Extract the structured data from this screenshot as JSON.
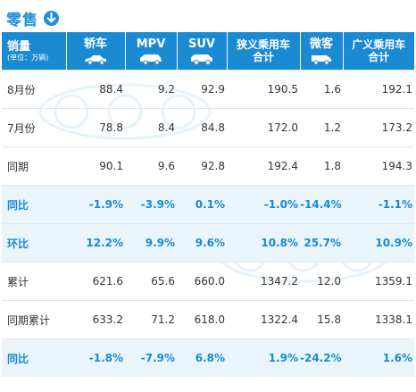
{
  "title": "零售",
  "header": {
    "col0_main": "销量",
    "col0_sub": "(单位：万辆)",
    "sedan": "轿车",
    "mpv": "MPV",
    "suv": "SUV",
    "narrow_line1": "狭义乘用车",
    "narrow_line2": "合计",
    "micro": "微客",
    "broad_line1": "广义乘用车",
    "broad_line2": "合计"
  },
  "rows": [
    {
      "label": "8月份",
      "sedan": "88.4",
      "mpv": "9.2",
      "suv": "92.9",
      "narrow": "190.5",
      "micro": "1.6",
      "broad": "192.1"
    },
    {
      "label": "7月份",
      "sedan": "78.8",
      "mpv": "8.4",
      "suv": "84.8",
      "narrow": "172.0",
      "micro": "1.2",
      "broad": "173.2"
    },
    {
      "label": "同期",
      "sedan": "90.1",
      "mpv": "9.6",
      "suv": "92.8",
      "narrow": "192.4",
      "micro": "1.8",
      "broad": "194.3"
    },
    {
      "label": "同比",
      "sedan": "-1.9%",
      "mpv": "-3.9%",
      "suv": "0.1%",
      "narrow": "-1.0%",
      "micro": "-14.4%",
      "broad": "-1.1%"
    },
    {
      "label": "环比",
      "sedan": "12.2%",
      "mpv": "9.9%",
      "suv": "9.6%",
      "narrow": "10.8%",
      "micro": "25.7%",
      "broad": "10.9%"
    },
    {
      "label": "累计",
      "sedan": "621.6",
      "mpv": "65.6",
      "suv": "660.0",
      "narrow": "1347.2",
      "micro": "12.0",
      "broad": "1359.1"
    },
    {
      "label": "同期累计",
      "sedan": "633.2",
      "mpv": "71.2",
      "suv": "618.0",
      "narrow": "1322.4",
      "micro": "15.8",
      "broad": "1338.1"
    },
    {
      "label": "同比",
      "sedan": "-1.8%",
      "mpv": "-7.9%",
      "suv": "6.8%",
      "narrow": "1.9%",
      "micro": "-24.2%",
      "broad": "1.6%"
    }
  ],
  "colors": {
    "accent": "#1a8ad3",
    "highlight_bg": "#e9f4fb"
  }
}
